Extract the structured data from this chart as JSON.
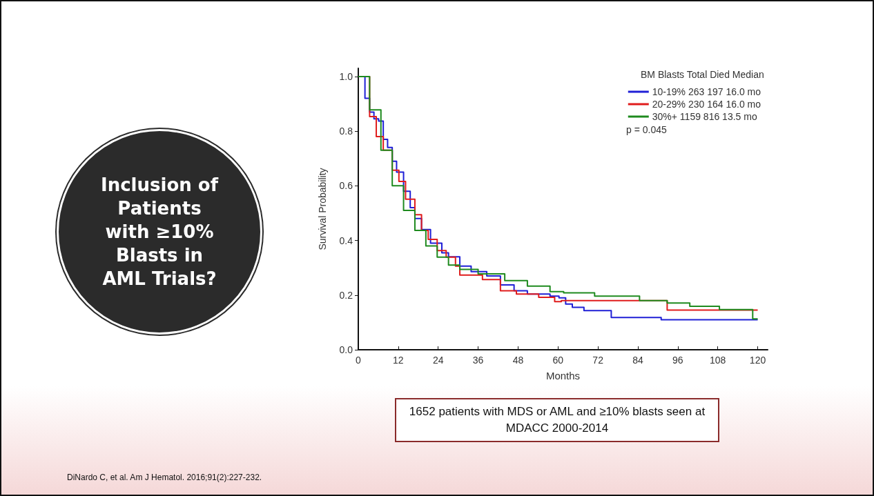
{
  "chart_data": {
    "type": "step",
    "xlabel": "Months",
    "ylabel": "Survival Probability",
    "legend_title": "BM Blasts Total Died Median",
    "annotations": [
      "p = 0.045",
      "Inclusion of Patients with ≥10% Blasts in AML Trials?",
      "1652 patients with MDS or AML and ≥10% blasts seen at MDACC 2000-2014",
      "DiNardo C, et al. Am J Hematol. 2016;91(2):227-232."
    ],
    "xlim": [
      0,
      123
    ],
    "xticks": [
      0,
      12,
      24,
      36,
      48,
      60,
      72,
      84,
      96,
      108,
      120
    ],
    "ylim": [
      0,
      1.03
    ],
    "yticks": [
      {
        "value": 0,
        "label": "0.0"
      },
      0.2,
      0.4,
      0.6,
      0.8,
      {
        "value": 1,
        "label": "1.0"
      }
    ],
    "grid": false,
    "legend": "top right",
    "series": [
      {
        "name": "10-19% 263 197 16.0 mo",
        "color": "#1f1fd6",
        "x": [
          0,
          2,
          3.4,
          4.7,
          6.1,
          7.5,
          8.8,
          10.2,
          11.5,
          13.6,
          15.6,
          17,
          19,
          21.7,
          25.1,
          27.1,
          30.5,
          33.9,
          38.6,
          42.7,
          46.8,
          50.8,
          57.6,
          60.3,
          62.3,
          64.3,
          67.8,
          76,
          91,
          120
        ],
        "values": [
          1,
          0.92,
          0.87,
          0.845,
          0.837,
          0.77,
          0.74,
          0.69,
          0.65,
          0.58,
          0.52,
          0.48,
          0.44,
          0.39,
          0.355,
          0.34,
          0.306,
          0.286,
          0.27,
          0.237,
          0.216,
          0.204,
          0.196,
          0.19,
          0.167,
          0.155,
          0.143,
          0.118,
          0.11,
          0.11
        ]
      },
      {
        "name": "20-29% 230 164 16.0 mo",
        "color": "#e01c1c",
        "x": [
          0,
          3.4,
          5.4,
          7.5,
          10.2,
          12.2,
          14.2,
          17,
          19,
          21,
          23.7,
          26.4,
          29.2,
          30.5,
          34.6,
          37.3,
          42.7,
          47.5,
          54.2,
          59,
          61,
          92.8,
          120
        ],
        "values": [
          1,
          0.853,
          0.78,
          0.73,
          0.657,
          0.616,
          0.551,
          0.494,
          0.437,
          0.404,
          0.363,
          0.339,
          0.306,
          0.273,
          0.273,
          0.257,
          0.216,
          0.204,
          0.192,
          0.176,
          0.18,
          0.145,
          0.145
        ]
      },
      {
        "name": "30%+ 1159 816 13.5 mo",
        "color": "#1e8a1e",
        "x": [
          0,
          3.4,
          6.8,
          10.2,
          13.6,
          17,
          20.3,
          23.7,
          27.1,
          30.5,
          36,
          44,
          50.8,
          57.6,
          61.7,
          71,
          84.5,
          92.8,
          99.6,
          108.5,
          118.5,
          120
        ],
        "values": [
          1,
          0.878,
          0.73,
          0.6,
          0.51,
          0.437,
          0.38,
          0.339,
          0.31,
          0.294,
          0.278,
          0.253,
          0.233,
          0.213,
          0.208,
          0.196,
          0.18,
          0.171,
          0.159,
          0.147,
          0.113,
          0.113
        ]
      }
    ]
  }
}
